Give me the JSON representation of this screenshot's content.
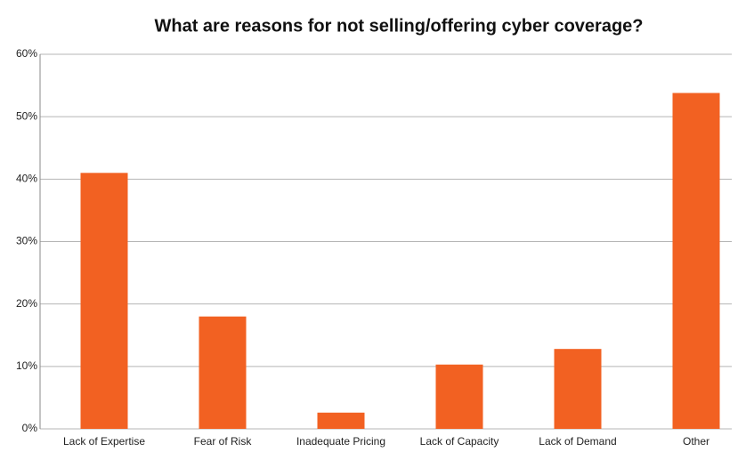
{
  "chart_data": {
    "type": "bar",
    "title": "What are reasons for not selling/offering cyber coverage?",
    "categories": [
      "Lack of Expertise",
      "Fear of Risk",
      "Inadequate Pricing",
      "Lack of Capacity",
      "Lack of Demand",
      "Other"
    ],
    "values": [
      41,
      18,
      2.6,
      10.3,
      12.8,
      53.8
    ],
    "color": "#f26122",
    "ylim": [
      0,
      60
    ],
    "yticks": [
      {
        "value": 0,
        "label": "0%"
      },
      {
        "value": 10,
        "label": "10%"
      },
      {
        "value": 20,
        "label": "20%"
      },
      {
        "value": 30,
        "label": "30%"
      },
      {
        "value": 40,
        "label": "40%"
      },
      {
        "value": 50,
        "label": "50%"
      },
      {
        "value": 60,
        "label": "60%"
      }
    ],
    "grid": true
  }
}
